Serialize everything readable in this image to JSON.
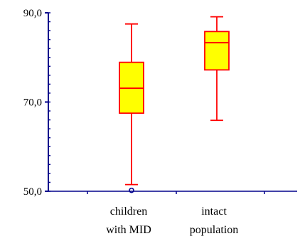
{
  "chart_data": {
    "type": "boxplot",
    "title": "",
    "xlabel": "",
    "ylabel": "",
    "ylim": [
      50,
      90
    ],
    "y_ticks": [
      {
        "value": 90,
        "label": "90,0"
      },
      {
        "value": 70,
        "label": "70,0"
      },
      {
        "value": 50,
        "label": "50,0"
      }
    ],
    "categories": [
      {
        "lines": [
          "children",
          "with MID"
        ]
      },
      {
        "lines": [
          "intact",
          "population"
        ]
      }
    ],
    "boxes": [
      {
        "whisker_low": 51.5,
        "q1": 67.5,
        "median": 73.1,
        "q3": 78.9,
        "whisker_high": 87.5,
        "outliers": [
          50.2
        ]
      },
      {
        "whisker_low": 65.9,
        "q1": 77.2,
        "median": 83.3,
        "q3": 85.8,
        "whisker_high": 89.1,
        "outliers": []
      }
    ],
    "colors": {
      "box_fill": "#ffff00",
      "box_stroke": "#ff0000",
      "axis": "#00008b",
      "outlier": "#00008b"
    },
    "grid": false,
    "legend": "none"
  }
}
